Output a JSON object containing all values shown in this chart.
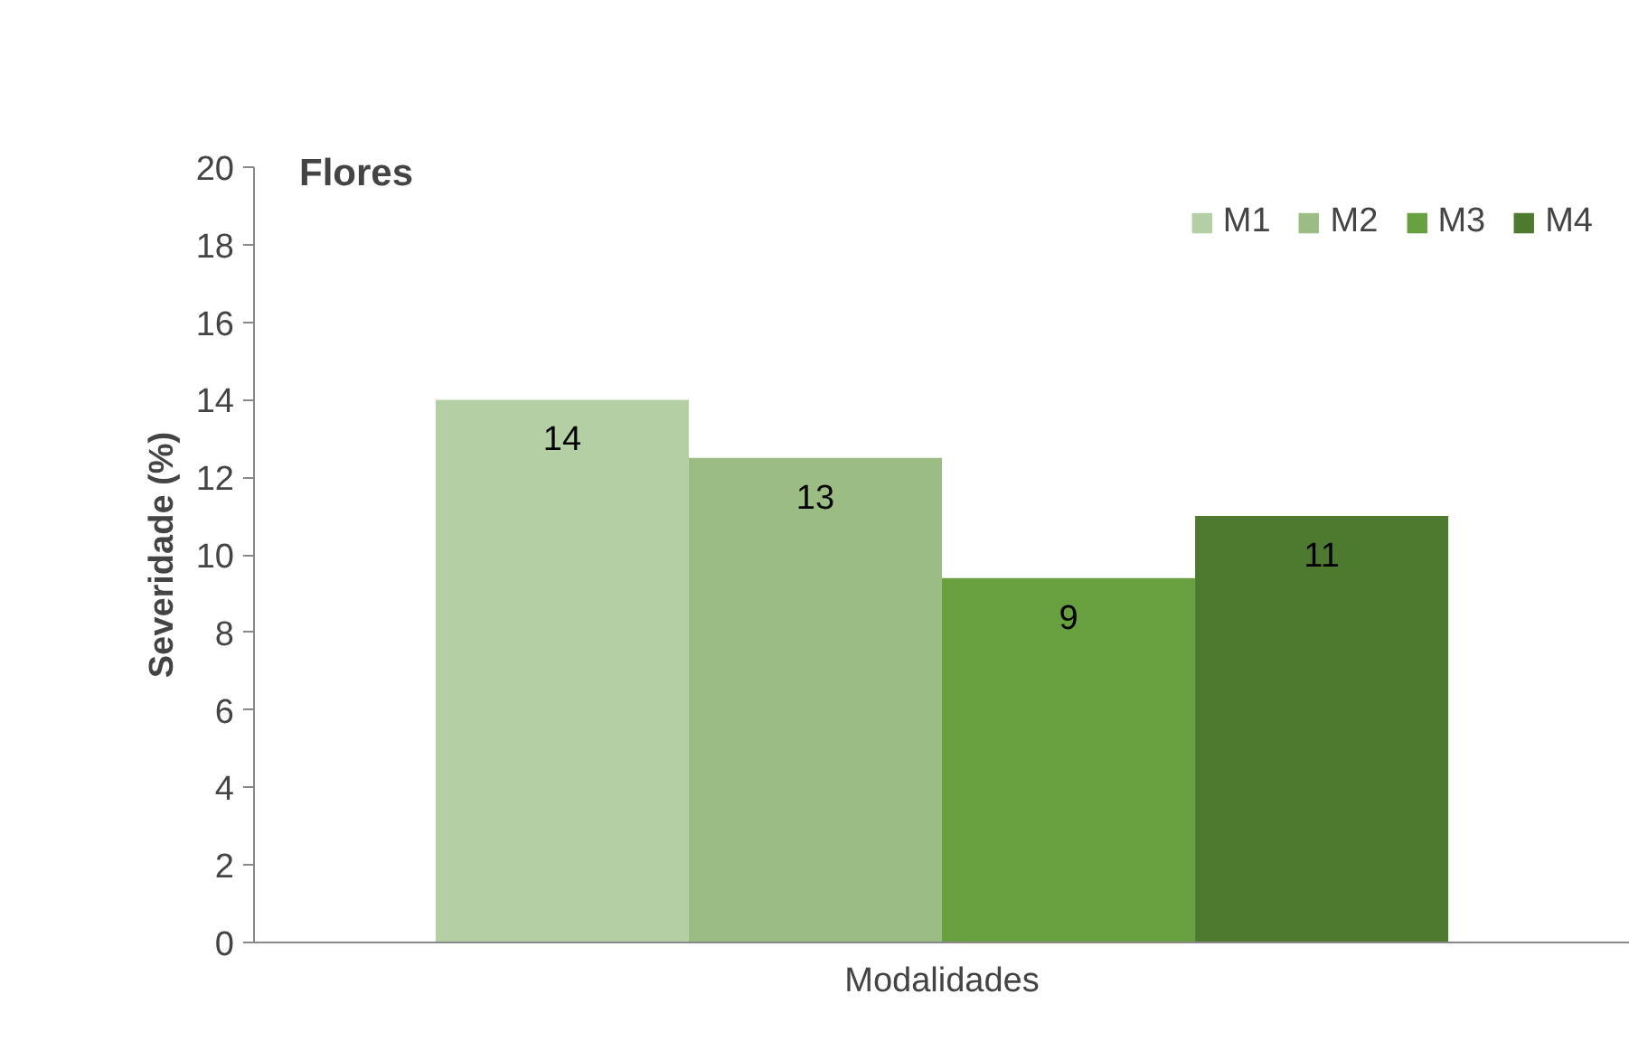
{
  "chart_data": {
    "type": "bar",
    "title": "Flores",
    "xlabel": "Modalidades",
    "ylabel": "Severidade (%)",
    "categories": [
      null
    ],
    "series": [
      {
        "name": "M1",
        "color": "#b3cfa3",
        "values": [
          14.0
        ],
        "value_labels": [
          "14"
        ]
      },
      {
        "name": "M2",
        "color": "#9bbd84",
        "values": [
          12.5
        ],
        "value_labels": [
          "13"
        ]
      },
      {
        "name": "M3",
        "color": "#68a03f",
        "values": [
          9.4
        ],
        "value_labels": [
          "9"
        ]
      },
      {
        "name": "M4",
        "color": "#4e7a2f",
        "values": [
          11.0
        ],
        "value_labels": [
          "11"
        ]
      }
    ],
    "ylim": [
      0,
      20
    ],
    "yticks": [
      0,
      2,
      4,
      6,
      8,
      10,
      12,
      14,
      16,
      18,
      20
    ],
    "grid": false,
    "legend": "top right"
  }
}
